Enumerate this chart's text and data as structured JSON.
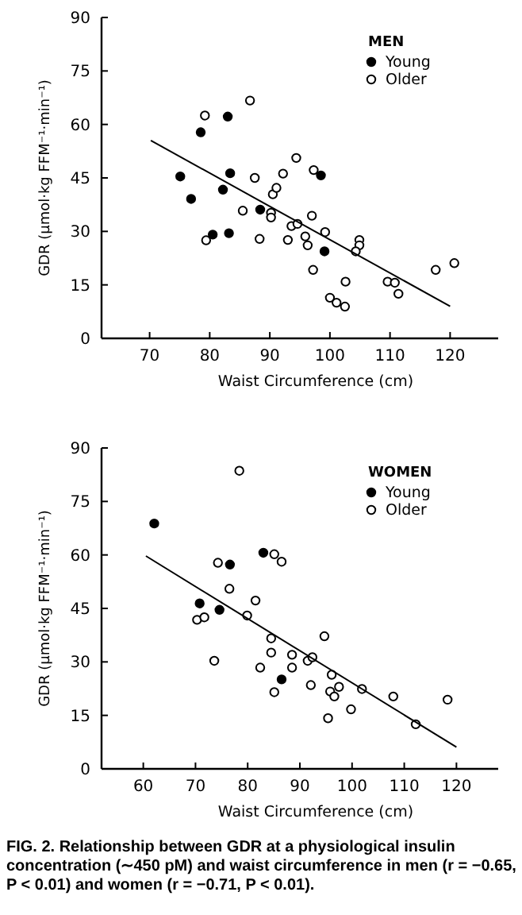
{
  "chart_data": [
    {
      "type": "scatter",
      "xlabel": "Waist Circumference (cm)",
      "ylabel": "GDR (μmol·kg FFM⁻¹·min⁻¹)",
      "legend_title": "MEN",
      "legend": "top right",
      "grid": false,
      "xlim": [
        62,
        128
      ],
      "xticks": [
        70,
        80,
        90,
        100,
        110,
        120
      ],
      "ylim": [
        0,
        90
      ],
      "yticks": [
        0,
        15,
        30,
        45,
        60,
        75,
        90
      ],
      "series": [
        {
          "name": "Young",
          "color": "#000000",
          "marker": "circle",
          "x": [
            75.1,
            76.9,
            78.5,
            83.0,
            83.4,
            82.2,
            88.4,
            98.5,
            80.5,
            83.2,
            99.1
          ],
          "values": [
            45.4,
            39.1,
            57.8,
            62.2,
            46.3,
            41.7,
            36.1,
            45.7,
            29.1,
            29.5,
            24.4
          ]
        },
        {
          "name": "Older",
          "color": "#000000",
          "marker": "circle",
          "x": [
            79.2,
            86.7,
            87.5,
            85.5,
            90.5,
            91.1,
            92.2,
            94.4,
            97.3,
            90.2,
            90.2,
            93.6,
            94.6,
            97.0,
            99.2,
            79.4,
            88.3,
            93.0,
            95.9,
            96.3,
            97.2,
            100.0,
            101.1,
            102.5,
            102.6,
            104.9,
            104.9,
            104.3,
            109.6,
            110.8,
            111.4,
            117.6,
            120.7
          ],
          "values": [
            62.5,
            66.7,
            45.0,
            35.8,
            40.4,
            42.2,
            46.2,
            50.6,
            47.2,
            35.2,
            33.9,
            31.5,
            32.1,
            34.4,
            29.8,
            27.5,
            27.9,
            27.6,
            28.6,
            26.1,
            19.2,
            11.4,
            10.0,
            8.9,
            15.9,
            27.6,
            26.1,
            24.4,
            15.9,
            15.6,
            12.5,
            19.2,
            21.1
          ]
        },
        {
          "type": "line",
          "color": "#000000",
          "x": [
            70.2,
            120
          ],
          "values": [
            55.5,
            9.0
          ]
        }
      ]
    },
    {
      "type": "scatter",
      "xlabel": "Waist Circumference (cm)",
      "ylabel": "GDR (μmol·kg FFM⁻¹·min⁻¹)",
      "legend_title": "WOMEN",
      "legend": "top right",
      "grid": false,
      "xlim": [
        52,
        128
      ],
      "xticks": [
        60,
        70,
        80,
        90,
        100,
        110,
        120
      ],
      "ylim": [
        0,
        90
      ],
      "yticks": [
        0,
        15,
        30,
        45,
        60,
        75,
        90
      ],
      "annotations": [
        "FIG. 2. Relationship between GDR at a physiological insulin concentration (∼450 pM) and waist circumference in men (r = −0.65, P < 0.01) and women (r = −0.71, P < 0.01)."
      ],
      "series": [
        {
          "name": "Young",
          "color": "#000000",
          "marker": "circle",
          "x": [
            62.1,
            76.6,
            83.0,
            70.8,
            74.6,
            86.5
          ],
          "values": [
            68.8,
            57.3,
            60.6,
            46.4,
            44.6,
            25.1
          ]
        },
        {
          "name": "Older",
          "color": "#000000",
          "marker": "circle",
          "x": [
            74.3,
            78.4,
            85.1,
            86.5,
            81.5,
            76.5,
            70.3,
            71.7,
            73.6,
            79.9,
            84.5,
            82.4,
            84.5,
            88.5,
            88.5,
            85.1,
            91.5,
            92.4,
            92.1,
            94.7,
            96.1,
            95.8,
            96.6,
            97.5,
            95.4,
            99.8,
            101.9,
            107.9,
            112.2,
            118.3
          ],
          "values": [
            57.8,
            83.6,
            60.2,
            58.1,
            47.2,
            50.5,
            41.8,
            42.5,
            30.3,
            43.0,
            32.6,
            28.4,
            36.6,
            32.0,
            28.4,
            21.5,
            30.3,
            31.3,
            23.5,
            37.2,
            26.4,
            21.7,
            20.3,
            23.0,
            14.2,
            16.7,
            22.4,
            20.3,
            12.5,
            19.4
          ]
        },
        {
          "type": "line",
          "color": "#000000",
          "x": [
            60.5,
            120
          ],
          "values": [
            59.7,
            6.1
          ]
        }
      ]
    }
  ]
}
